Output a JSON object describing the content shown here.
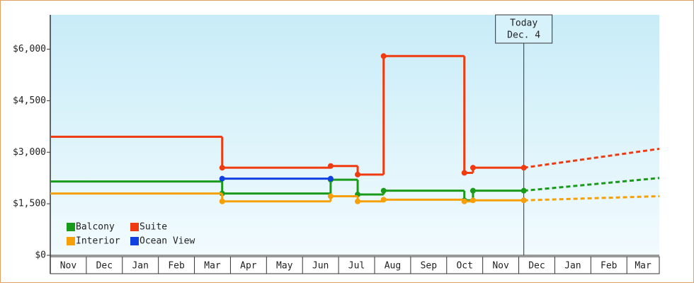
{
  "chart_data": {
    "type": "step-line",
    "xlim": [
      0,
      16.9
    ],
    "ylim": [
      0,
      7000
    ],
    "yticks": [
      {
        "value": 0,
        "label": "$0"
      },
      {
        "value": 1500,
        "label": "$1,500"
      },
      {
        "value": 3000,
        "label": "$3,000"
      },
      {
        "value": 4500,
        "label": "$4,500"
      },
      {
        "value": 6000,
        "label": "$6,000"
      }
    ],
    "xticks": [
      {
        "value": 0.5,
        "label": "Nov"
      },
      {
        "value": 1.5,
        "label": "Dec"
      },
      {
        "value": 2.5,
        "label": "Jan"
      },
      {
        "value": 3.5,
        "label": "Feb"
      },
      {
        "value": 4.5,
        "label": "Mar"
      },
      {
        "value": 5.5,
        "label": "Apr"
      },
      {
        "value": 6.5,
        "label": "May"
      },
      {
        "value": 7.5,
        "label": "Jun"
      },
      {
        "value": 8.5,
        "label": "Jul"
      },
      {
        "value": 9.5,
        "label": "Aug"
      },
      {
        "value": 10.5,
        "label": "Sep"
      },
      {
        "value": 11.5,
        "label": "Oct"
      },
      {
        "value": 12.5,
        "label": "Nov"
      },
      {
        "value": 13.5,
        "label": "Dec"
      },
      {
        "value": 14.5,
        "label": "Jan"
      },
      {
        "value": 15.5,
        "label": "Feb"
      },
      {
        "value": 16.45,
        "label": "Mar"
      }
    ],
    "today": {
      "x": 13.14,
      "label": [
        "Today",
        "Dec. 4"
      ]
    },
    "series": [
      {
        "name": "Balcony",
        "color": "#1a9a1a",
        "x": [
          0,
          4.77,
          7.78,
          8.53,
          9.25,
          11.49,
          11.73,
          13.14
        ],
        "values": [
          2150,
          1800,
          2200,
          1770,
          1880,
          1600,
          1880,
          1880
        ],
        "forecast": {
          "x": [
            13.14,
            16.9
          ],
          "values": [
            1880,
            2250
          ]
        }
      },
      {
        "name": "Suite",
        "color": "#f03a10",
        "x": [
          0,
          4.77,
          7.78,
          8.53,
          9.25,
          11.49,
          11.73,
          13.14
        ],
        "values": [
          3450,
          2550,
          2600,
          2350,
          5800,
          2400,
          2550,
          2550
        ],
        "forecast": {
          "x": [
            13.14,
            16.9
          ],
          "values": [
            2550,
            3100
          ]
        }
      },
      {
        "name": "Interior",
        "color": "#f5a00a",
        "x": [
          0,
          4.77,
          7.78,
          8.53,
          9.25,
          11.49,
          11.73,
          13.14
        ],
        "values": [
          1800,
          1570,
          1720,
          1570,
          1620,
          1570,
          1600,
          1600
        ],
        "forecast": {
          "x": [
            13.14,
            16.9
          ],
          "values": [
            1600,
            1720
          ]
        }
      },
      {
        "name": "Ocean View",
        "color": "#1040e0",
        "x": [
          4.77,
          7.78
        ],
        "values": [
          2230,
          2230
        ]
      }
    ]
  }
}
